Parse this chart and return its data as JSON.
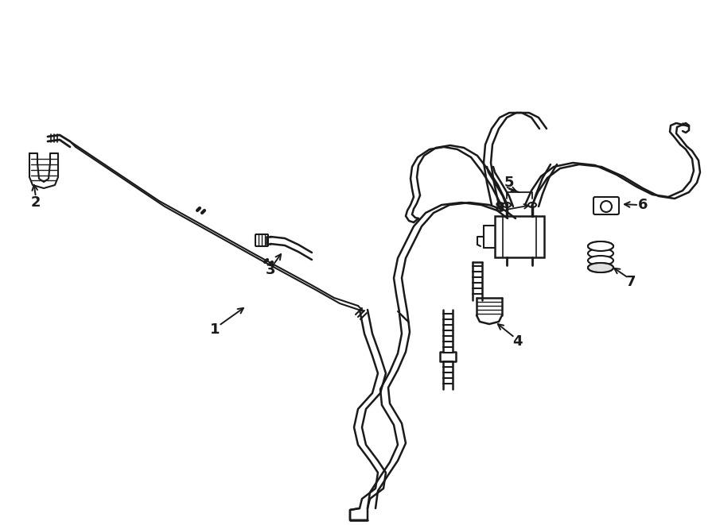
{
  "bg_color": "#ffffff",
  "line_color": "#1a1a1a",
  "lw": 2.0,
  "lw_thin": 1.3,
  "lw_thick": 2.8
}
